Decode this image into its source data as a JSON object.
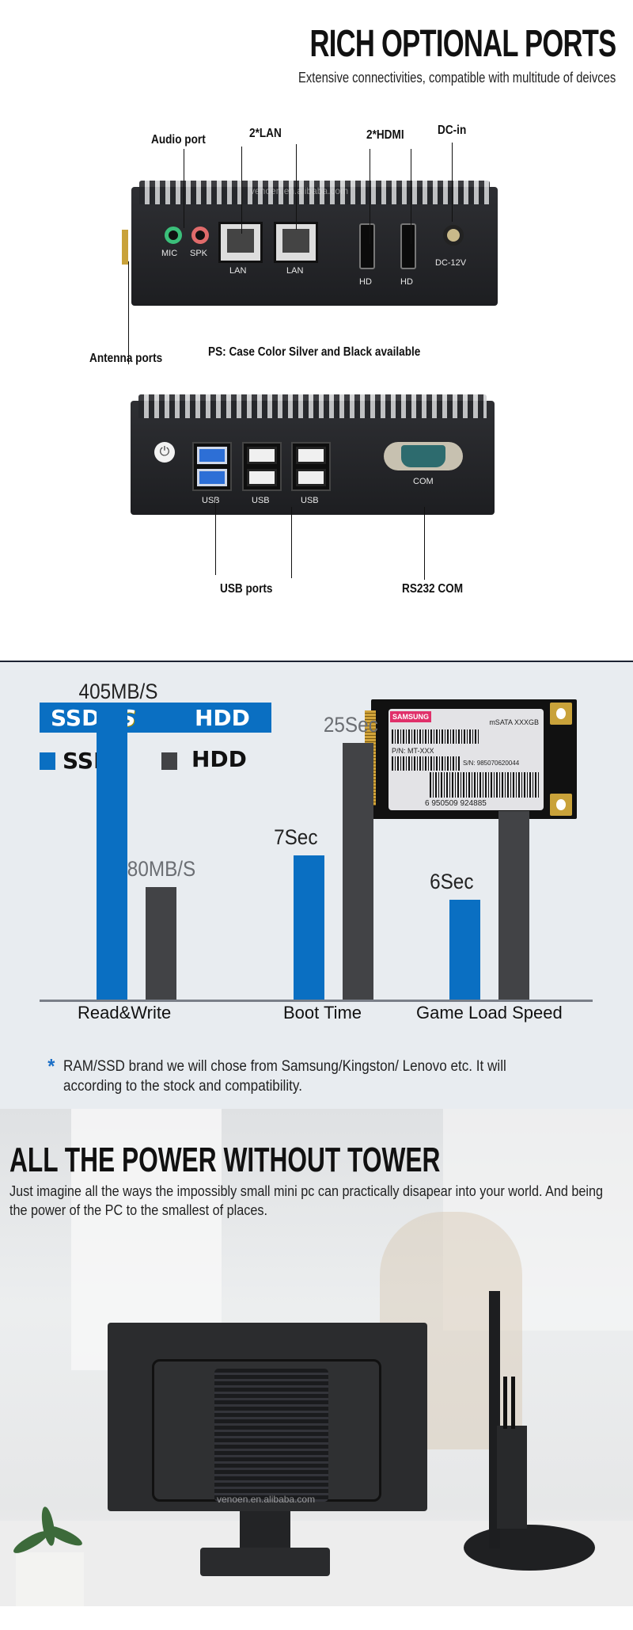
{
  "ports": {
    "title": "RICH OPTIONAL PORTS",
    "subtitle": "Extensive connectivities, compatible  with multitude of deivces",
    "callouts": {
      "audio": "Audio port",
      "lan": "2*LAN",
      "hdmi": "2*HDMI",
      "dc": "DC-in",
      "antenna": "Antenna ports",
      "usb": "USB ports",
      "com": "RS232 COM"
    },
    "note": "PS: Case Color Silver and Black available",
    "front_labels": {
      "mic": "MIC",
      "spk": "SPK",
      "lan1": "LAN",
      "lan2": "LAN",
      "hd1": "HD",
      "hd2": "HD",
      "dc": "DC-12V"
    },
    "rear_labels": {
      "usb1": "USB",
      "usb2": "USB",
      "usb3": "USB",
      "com": "COM"
    },
    "watermark": "venoen.en.alibaba.com"
  },
  "ssd": {
    "banner_left": "SSD",
    "banner_vs": "VS",
    "banner_right": "HDD",
    "legend": [
      {
        "label": "SSD",
        "color": "#0a6fc2"
      },
      {
        "label": "HDD",
        "color": "#424346"
      }
    ],
    "card": {
      "brand": "SAMSUNG",
      "model": "mSATA  XXXGB",
      "pn": "P/N: MT-XXX",
      "sn": "S/N: 985070620044",
      "barcode": "6  950509   924885"
    },
    "note_star": "*",
    "note": "RAM/SSD brand we will chose from Samsung/Kingston/ Lenovo etc. It will according to the stock and compatibility."
  },
  "chart_data": {
    "type": "bar",
    "categories": [
      "Read&Write",
      "Boot Time",
      "Game Load Speed"
    ],
    "series": [
      {
        "name": "SSD",
        "color": "#0a6fc2",
        "values": [
          405,
          7,
          6
        ],
        "labels": [
          "405MB/S",
          "7Sec",
          "6Sec"
        ]
      },
      {
        "name": "HDD",
        "color": "#424346",
        "values": [
          80,
          25,
          null
        ],
        "labels": [
          "80MB/S",
          "25Sec",
          ""
        ]
      }
    ],
    "grid": false
  },
  "power": {
    "title": "ALL THE POWER WITHOUT TOWER",
    "body": "Just imagine all the ways the impossibly small mini pc can practically disapear into your world. And being the power of the PC to the smallest of places.",
    "watermark": "venoen.en.alibaba.com"
  }
}
